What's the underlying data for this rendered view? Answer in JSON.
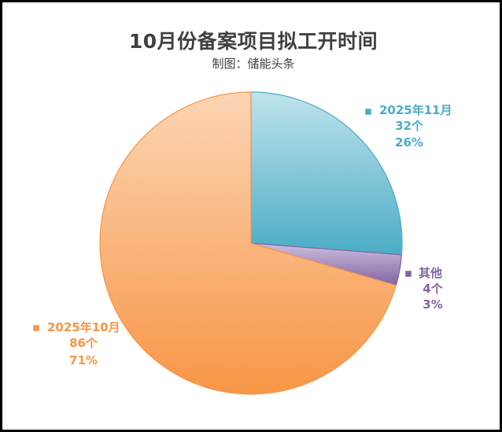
{
  "chart_data": {
    "type": "pie",
    "title": "10月份备案项目拟工开时间",
    "subtitle": "制图：储能头条",
    "slices": [
      {
        "label": "2025年11月",
        "count_label": "32个",
        "percent_label": "26%",
        "value": 32,
        "color": "#4BACC6",
        "color_light": "#BFE3EC",
        "text_color": "#4BACC6"
      },
      {
        "label": "其他",
        "count_label": "4个",
        "percent_label": "3%",
        "value": 4,
        "color": "#8064A2",
        "color_light": "#CDBFDE",
        "text_color": "#8064A2"
      },
      {
        "label": "2025年10月",
        "count_label": "86个",
        "percent_label": "71%",
        "value": 86,
        "color": "#F79646",
        "color_light": "#FCD5B5",
        "text_color": "#F79646"
      }
    ],
    "start_angle_deg": 0,
    "direction": "clockwise",
    "legend": "none"
  }
}
